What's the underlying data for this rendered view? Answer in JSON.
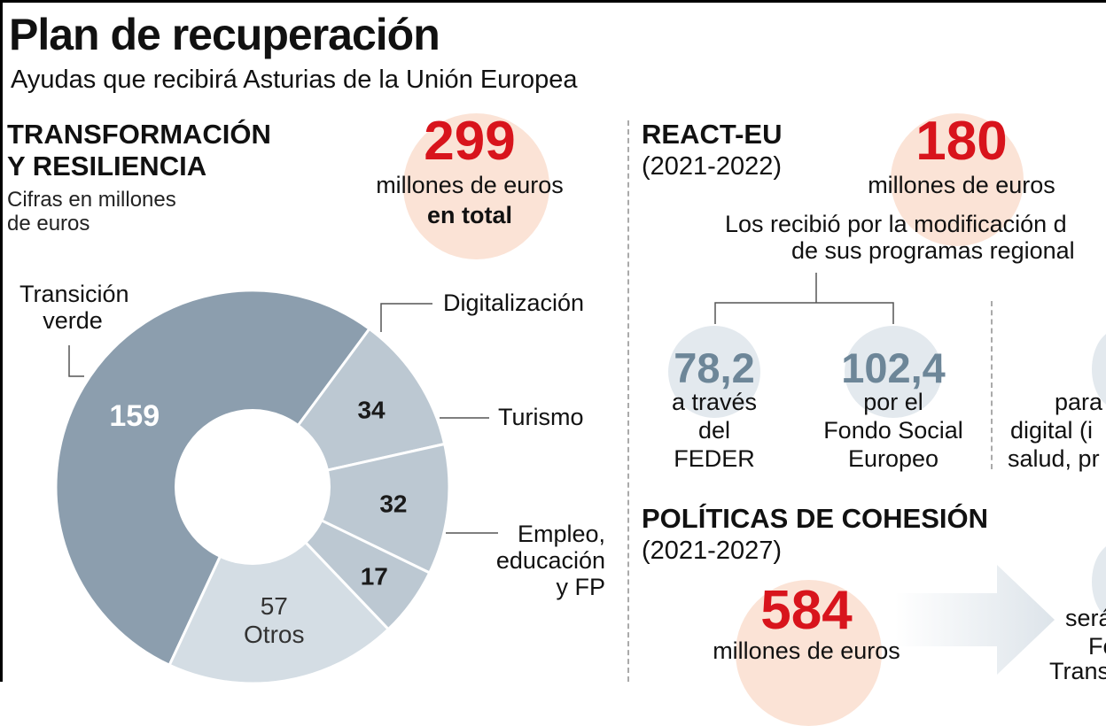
{
  "title": "Plan de recuperación",
  "subtitle": "Ayudas que recibirá Asturias de la Unión Europea",
  "left": {
    "heading_line1": "TRANSFORMACIÓN",
    "heading_line2": "Y RESILIENCIA",
    "units_line1": "Cifras en millones",
    "units_line2": "de euros",
    "total": "299",
    "total_line1": "millones de euros",
    "total_line2": "en total",
    "labels": {
      "transicion_1": "Transición",
      "transicion_2": "verde",
      "digital": "Digitalización",
      "turismo": "Turismo",
      "empleo_1": "Empleo,",
      "empleo_2": "educación",
      "empleo_3": "y FP"
    }
  },
  "chart_data": {
    "type": "pie",
    "title": "Transformación y Resiliencia",
    "unit": "millones de euros",
    "total": 299,
    "categories": [
      "Transición verde",
      "Digitalización",
      "Turismo",
      "Empleo, educación y FP",
      "Otros"
    ],
    "values": [
      159,
      34,
      32,
      17,
      57
    ],
    "value_labels": [
      "159",
      "34",
      "32",
      "17",
      "57"
    ],
    "other_label": "Otros",
    "colors": [
      "#8c9eae",
      "#bcc8d2",
      "#bcc8d2",
      "#bcc8d2",
      "#d4dde4"
    ]
  },
  "react": {
    "heading": "REACT-EU",
    "period": "(2021-2022)",
    "total": "180",
    "total_label": "millones de euros",
    "note_line1": "Los recibió por la modificación d",
    "note_line2": "de sus programas regional",
    "feder_value": "78,2",
    "feder_line1": "a través",
    "feder_line2": "del",
    "feder_line3": "FEDER",
    "fse_value": "102,4",
    "fse_line1": "por el",
    "fse_line2": "Fondo Social",
    "fse_line3": "Europeo",
    "cut_line1": "para",
    "cut_line2": "digital (i",
    "cut_line3": "salud, pr"
  },
  "cohesion": {
    "heading": "POLÍTICAS DE COHESIÓN",
    "period": "(2021-2027)",
    "total": "584",
    "total_label": "millones de euros",
    "cut_line1": "será",
    "cut_line2": "Fo",
    "cut_line3": "Trans"
  }
}
